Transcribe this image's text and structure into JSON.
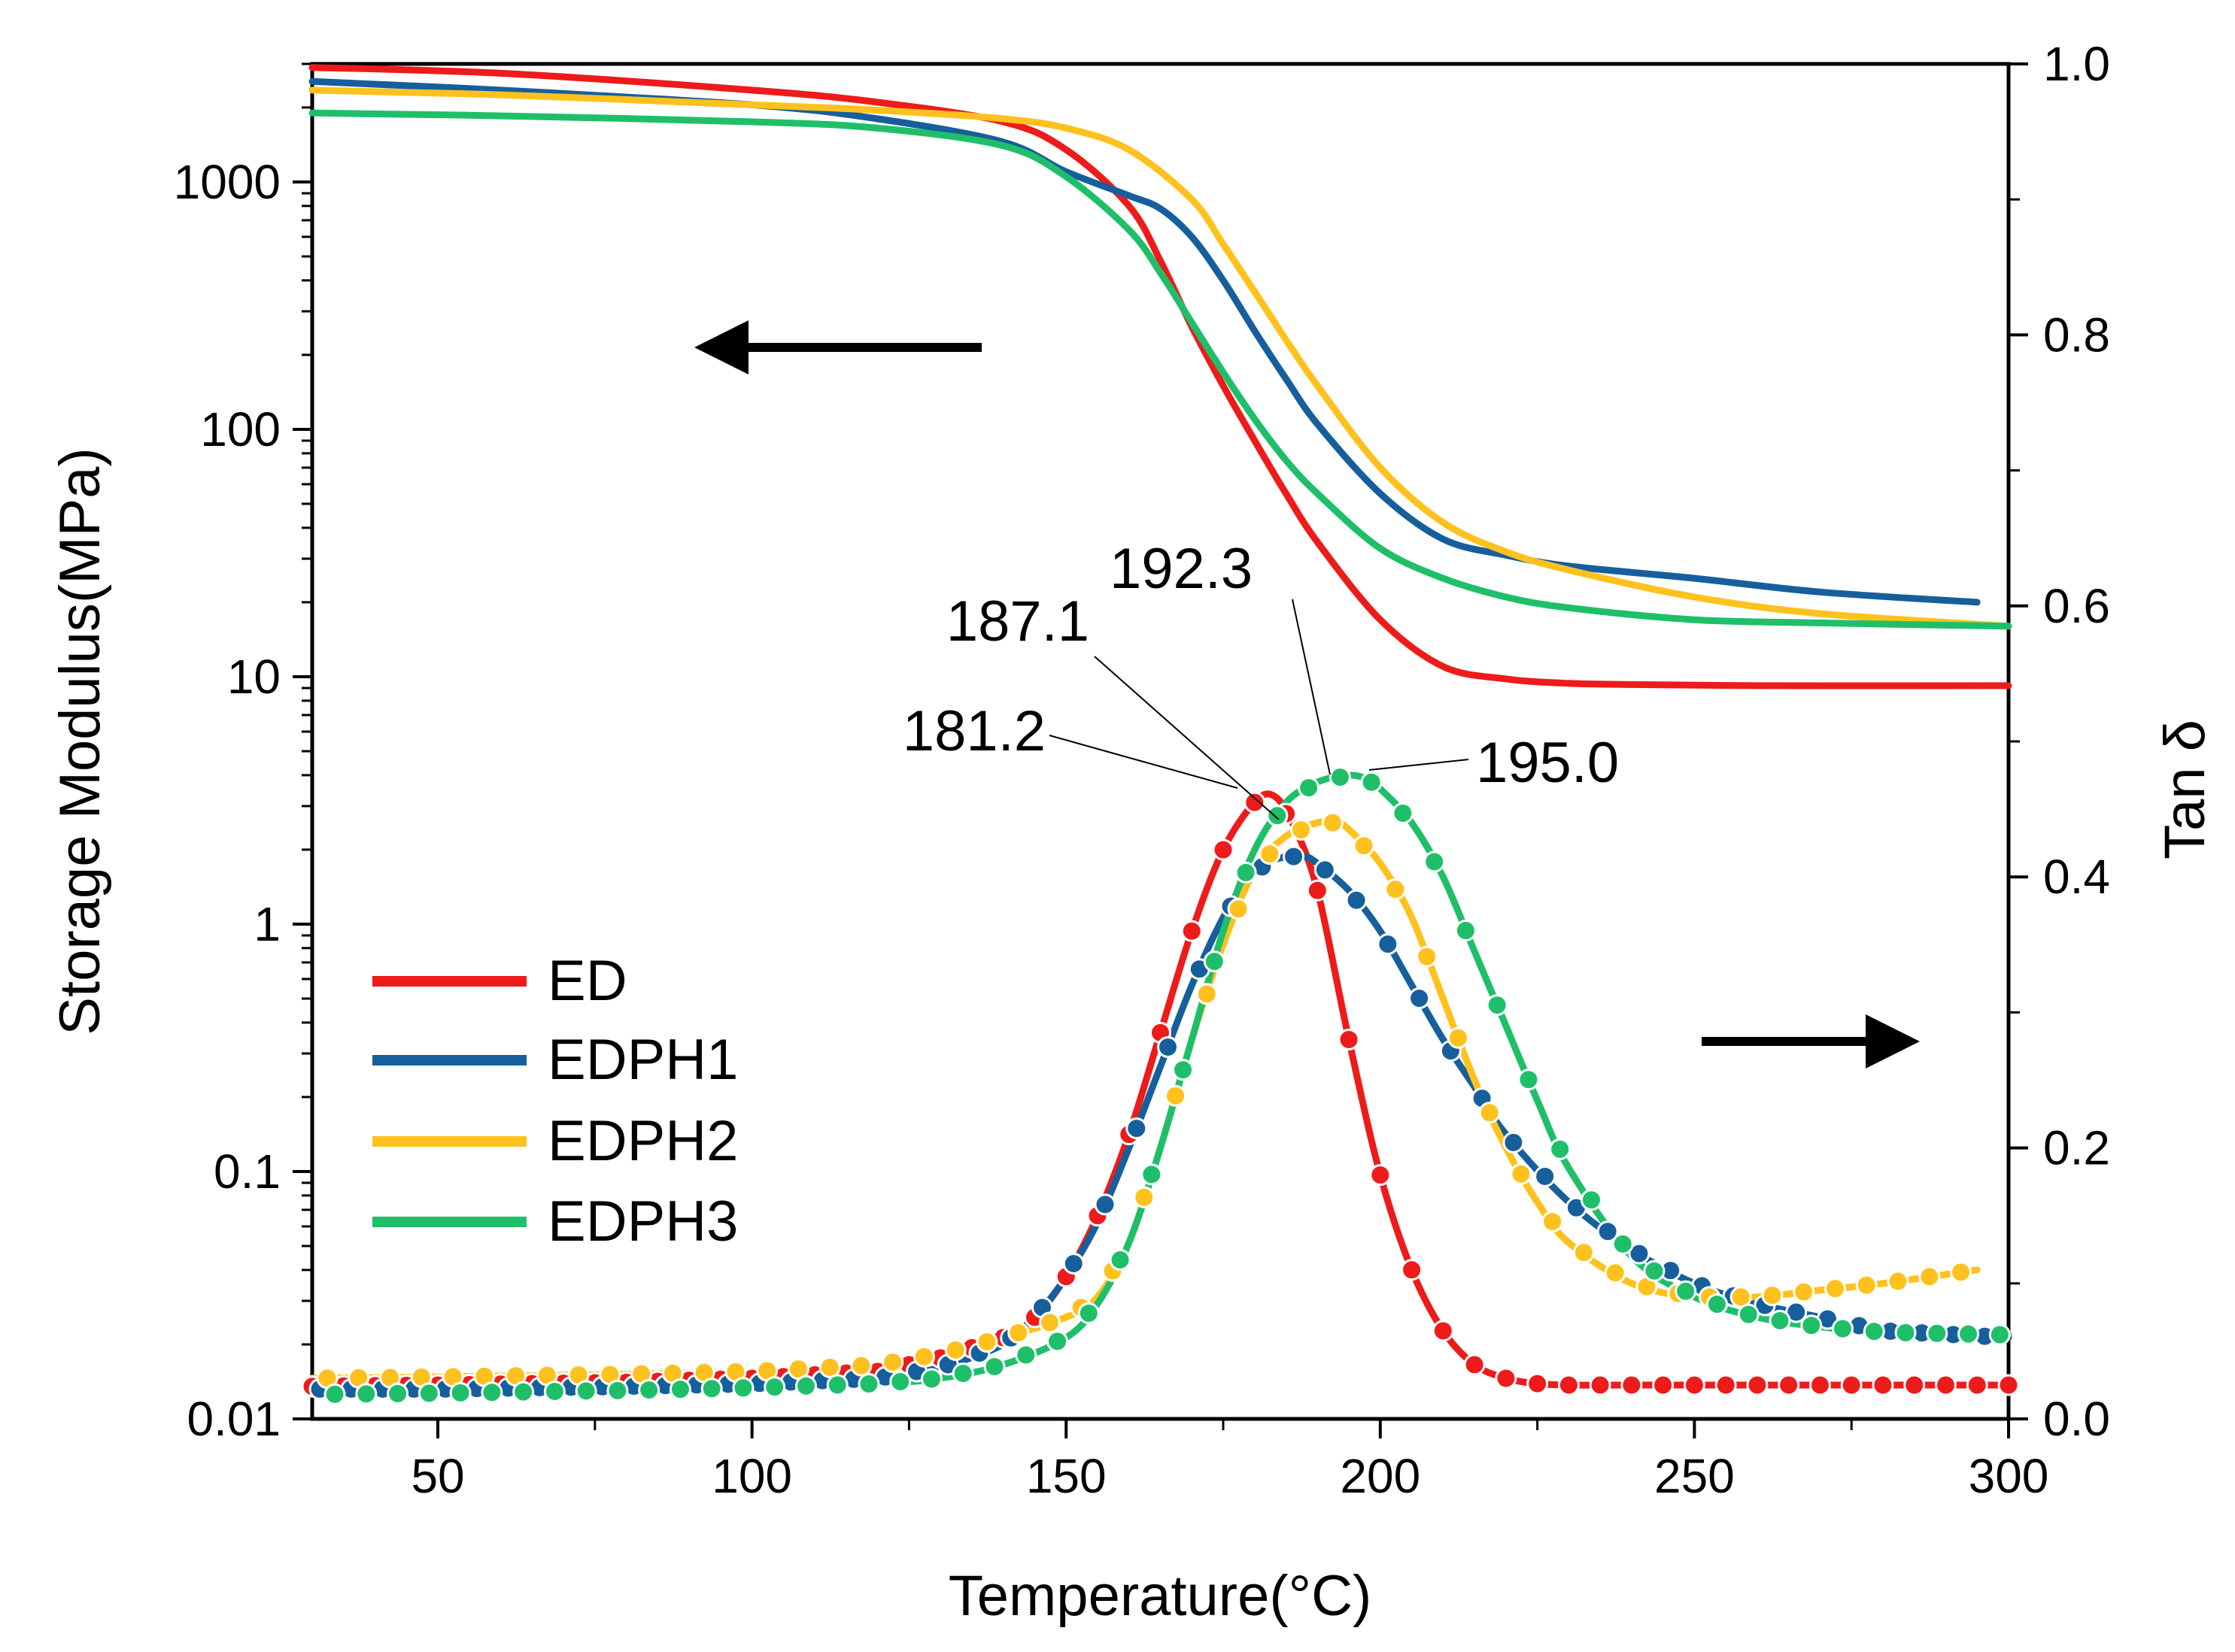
{
  "chart_data": {
    "type": "line",
    "title": "",
    "xlabel": "Temperature(°C)",
    "ylabel_left": "Storage Modulus(MPa)",
    "ylabel_right": "Tan δ",
    "xlim": [
      30,
      300
    ],
    "ylim_left": [
      0.01,
      3000
    ],
    "yscale_left": "log",
    "ylim_right": [
      0.0,
      1.0
    ],
    "x_ticks": [
      50,
      100,
      150,
      200,
      250,
      300
    ],
    "y_left_ticks": [
      {
        "value": 0.01,
        "label": "0.01"
      },
      {
        "value": 0.1,
        "label": "0.1"
      },
      {
        "value": 1,
        "label": "1"
      },
      {
        "value": 10,
        "label": "10"
      },
      {
        "value": 100,
        "label": "100"
      },
      {
        "value": 1000,
        "label": "1000"
      }
    ],
    "y_right_ticks": [
      {
        "value": 0.0,
        "label": "0.0"
      },
      {
        "value": 0.2,
        "label": "0.2"
      },
      {
        "value": 0.4,
        "label": "0.4"
      },
      {
        "value": 0.6,
        "label": "0.6"
      },
      {
        "value": 0.8,
        "label": "0.8"
      },
      {
        "value": 1.0,
        "label": "1.0"
      }
    ],
    "legend_position": "bottom-left",
    "series": [
      {
        "name": "ED",
        "color": "#EE1B1B",
        "storage_modulus": {
          "x": [
            30,
            60,
            100,
            120,
            140,
            150,
            160,
            165,
            170,
            175,
            180,
            185,
            190,
            200,
            210,
            220,
            230,
            240,
            260,
            300
          ],
          "y": [
            2900,
            2750,
            2350,
            2100,
            1750,
            1350,
            800,
            480,
            260,
            150,
            90,
            55,
            35,
            17,
            11,
            9.8,
            9.4,
            9.3,
            9.2,
            9.2
          ]
        },
        "tan_delta": {
          "x": [
            30,
            50,
            80,
            100,
            120,
            130,
            140,
            145,
            150,
            155,
            160,
            165,
            170,
            175,
            180,
            183,
            186,
            190,
            195,
            200,
            205,
            210,
            215,
            220,
            225,
            230,
            240,
            260,
            300
          ],
          "y": [
            0.024,
            0.025,
            0.027,
            0.03,
            0.035,
            0.045,
            0.06,
            0.075,
            0.105,
            0.15,
            0.21,
            0.285,
            0.36,
            0.42,
            0.455,
            0.46,
            0.44,
            0.39,
            0.28,
            0.18,
            0.11,
            0.065,
            0.04,
            0.03,
            0.026,
            0.025,
            0.025,
            0.025,
            0.025
          ]
        },
        "peak_label": "181.2"
      },
      {
        "name": "EDPH1",
        "color": "#165F9C",
        "storage_modulus": {
          "x": [
            30,
            60,
            100,
            120,
            140,
            150,
            160,
            165,
            170,
            175,
            180,
            185,
            190,
            200,
            210,
            220,
            230,
            250,
            270,
            295
          ],
          "y": [
            2550,
            2350,
            2050,
            1800,
            1450,
            1100,
            880,
            780,
            600,
            400,
            250,
            160,
            105,
            55,
            36,
            31,
            28,
            25,
            22,
            20
          ]
        },
        "tan_delta": {
          "x": [
            30,
            50,
            80,
            100,
            120,
            130,
            140,
            145,
            150,
            155,
            160,
            165,
            170,
            175,
            180,
            185,
            188,
            190,
            195,
            200,
            205,
            210,
            215,
            220,
            230,
            240,
            250,
            260,
            270,
            280,
            300
          ],
          "y": [
            0.022,
            0.022,
            0.024,
            0.026,
            0.03,
            0.038,
            0.055,
            0.075,
            0.105,
            0.145,
            0.2,
            0.26,
            0.32,
            0.37,
            0.405,
            0.415,
            0.415,
            0.41,
            0.39,
            0.36,
            0.32,
            0.28,
            0.245,
            0.21,
            0.16,
            0.125,
            0.1,
            0.085,
            0.075,
            0.065,
            0.06
          ]
        },
        "peak_label": "187.1"
      },
      {
        "name": "EDPH2",
        "color": "#FFC11E",
        "storage_modulus": {
          "x": [
            30,
            60,
            100,
            120,
            140,
            150,
            160,
            170,
            175,
            180,
            185,
            190,
            200,
            210,
            220,
            230,
            250,
            270,
            300
          ],
          "y": [
            2350,
            2250,
            2050,
            1950,
            1800,
            1650,
            1350,
            850,
            560,
            360,
            230,
            150,
            70,
            42,
            32,
            27,
            21,
            18,
            16
          ]
        },
        "tan_delta": {
          "x": [
            30,
            50,
            80,
            100,
            120,
            130,
            140,
            150,
            155,
            160,
            165,
            170,
            175,
            180,
            185,
            190,
            193,
            195,
            200,
            205,
            210,
            215,
            220,
            225,
            230,
            240,
            250,
            260,
            270,
            280,
            295
          ],
          "y": [
            0.03,
            0.031,
            0.033,
            0.035,
            0.04,
            0.048,
            0.06,
            0.075,
            0.09,
            0.13,
            0.2,
            0.28,
            0.35,
            0.405,
            0.43,
            0.44,
            0.44,
            0.435,
            0.41,
            0.37,
            0.31,
            0.25,
            0.2,
            0.16,
            0.13,
            0.1,
            0.09,
            0.09,
            0.095,
            0.1,
            0.11
          ]
        },
        "peak_label": "192.3"
      },
      {
        "name": "EDPH3",
        "color": "#1FBF6A",
        "storage_modulus": {
          "x": [
            30,
            60,
            100,
            120,
            140,
            150,
            160,
            165,
            170,
            175,
            180,
            185,
            190,
            200,
            210,
            220,
            230,
            250,
            270,
            300
          ],
          "y": [
            1900,
            1850,
            1750,
            1650,
            1400,
            1050,
            640,
            430,
            270,
            170,
            110,
            75,
            55,
            33,
            25,
            21,
            19,
            17,
            16.5,
            16
          ]
        },
        "tan_delta": {
          "x": [
            30,
            50,
            80,
            100,
            120,
            130,
            140,
            150,
            155,
            160,
            165,
            170,
            175,
            180,
            185,
            190,
            195,
            198,
            200,
            205,
            210,
            215,
            220,
            225,
            230,
            240,
            250,
            260,
            270,
            280,
            300
          ],
          "y": [
            0.018,
            0.019,
            0.021,
            0.023,
            0.026,
            0.03,
            0.04,
            0.06,
            0.085,
            0.13,
            0.2,
            0.28,
            0.36,
            0.42,
            0.455,
            0.47,
            0.475,
            0.472,
            0.465,
            0.44,
            0.4,
            0.345,
            0.29,
            0.235,
            0.185,
            0.12,
            0.09,
            0.075,
            0.068,
            0.064,
            0.062
          ]
        },
        "peak_label": "195.0"
      }
    ],
    "annotations": [
      {
        "text": "181.2",
        "series": "ED",
        "x": 181.2
      },
      {
        "text": "187.1",
        "series": "EDPH1",
        "x": 187.1
      },
      {
        "text": "192.3",
        "series": "EDPH2",
        "x": 192.3
      },
      {
        "text": "195.0",
        "series": "EDPH3",
        "x": 195.0
      }
    ],
    "arrows": [
      {
        "direction": "left",
        "target_axis": "left"
      },
      {
        "direction": "right",
        "target_axis": "right"
      }
    ]
  }
}
